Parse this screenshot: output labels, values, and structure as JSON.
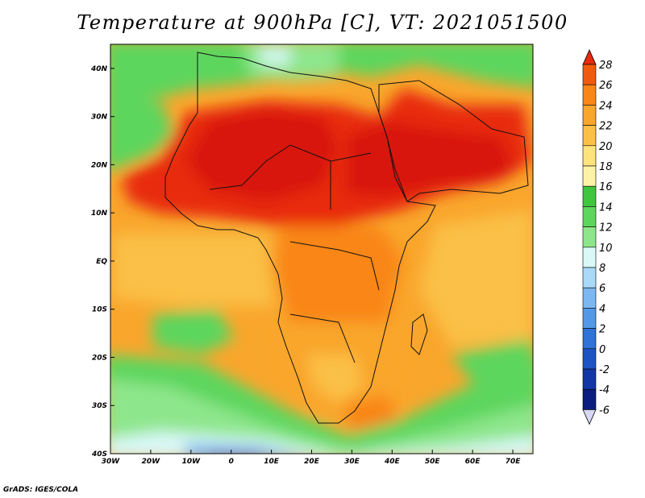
{
  "title": "Temperature at 900hPa [C], VT: 2021051500",
  "credit": "GrADS: IGES/COLA",
  "map": {
    "lon_labels": [
      "30W",
      "20W",
      "10W",
      "0",
      "10E",
      "20E",
      "30E",
      "40E",
      "50E",
      "60E",
      "70E"
    ],
    "lat_labels": [
      "40N",
      "30N",
      "20N",
      "10N",
      "EQ",
      "10S",
      "20S",
      "30S",
      "40S"
    ],
    "lon_range": [
      -30,
      75
    ],
    "lat_range": [
      -40,
      45
    ]
  },
  "colorbar": {
    "labels": [
      "28",
      "26",
      "24",
      "22",
      "20",
      "18",
      "16",
      "14",
      "12",
      "10",
      "8",
      "6",
      "4",
      "2",
      "0",
      "-2",
      "-4",
      "-6"
    ],
    "colors": [
      "#e8290b",
      "#f05a0e",
      "#f98617",
      "#f9a62c",
      "#fbc046",
      "#fde37b",
      "#fdf3a7",
      "#3ec63e",
      "#5dd65d",
      "#8ee68c",
      "#d9f8f6",
      "#a9d9f7",
      "#7cb7f1",
      "#5499e8",
      "#2f72d8",
      "#1d54c4",
      "#1236a6",
      "#0b1d7e",
      "#d8d8f8"
    ]
  }
}
